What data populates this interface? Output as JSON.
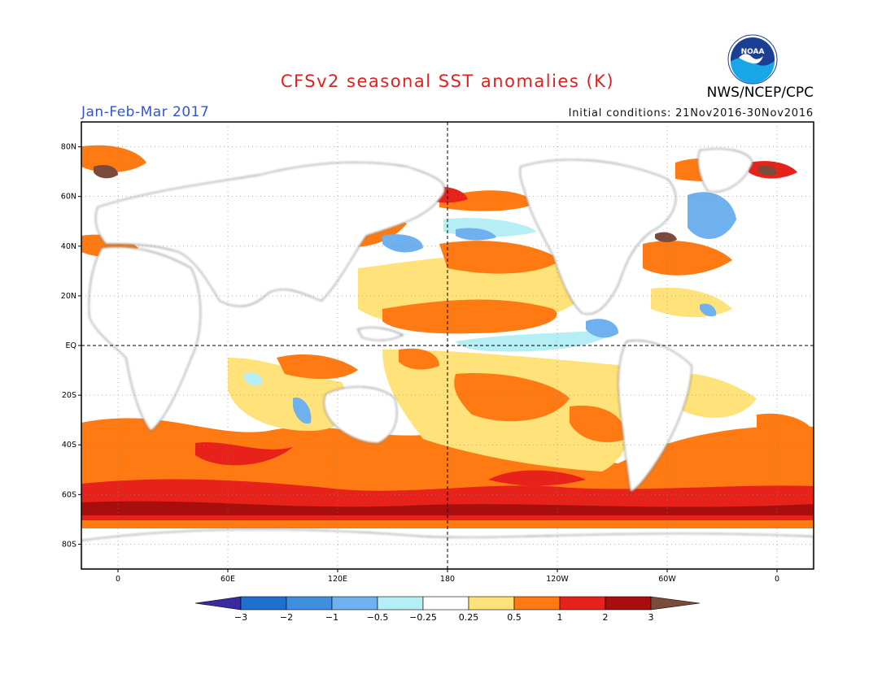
{
  "title": "CFSv2 seasonal SST anomalies (K)",
  "period": "Jan-Feb-Mar 2017",
  "initial_conditions": "Initial conditions: 21Nov2016-30Nov2016",
  "agency": "NWS/NCEP/CPC",
  "logo_text": "NOAA",
  "colors": {
    "title": "#dd2222",
    "period": "#3355cc",
    "frame": "#000000",
    "land": "#ffffff",
    "ocean_neutral": "#ffffff"
  },
  "map": {
    "projection": "cylindrical-equidistant",
    "longitude_range": [
      -20,
      380
    ],
    "latitude_range": [
      -90,
      90
    ],
    "lat_ticks": [
      "80N",
      "60N",
      "40N",
      "20N",
      "EQ",
      "20S",
      "40S",
      "60S",
      "80S"
    ],
    "lon_ticks": [
      "0",
      "60E",
      "120E",
      "180",
      "120W",
      "60W",
      "0"
    ],
    "reference_lines": [
      "equator",
      "dateline"
    ]
  },
  "colorbar": {
    "labels": [
      "−3",
      "−2",
      "−1",
      "−0.5",
      "−0.25",
      "0.25",
      "0.5",
      "1",
      "2",
      "3"
    ],
    "colors": [
      "#3a2a9f",
      "#1e6fce",
      "#3f8fe0",
      "#6fb0ef",
      "#b5eef5",
      "#ffffff",
      "#ffe27a",
      "#ff7a12",
      "#e7221a",
      "#a80e0e",
      "#7a4b3a"
    ]
  }
}
